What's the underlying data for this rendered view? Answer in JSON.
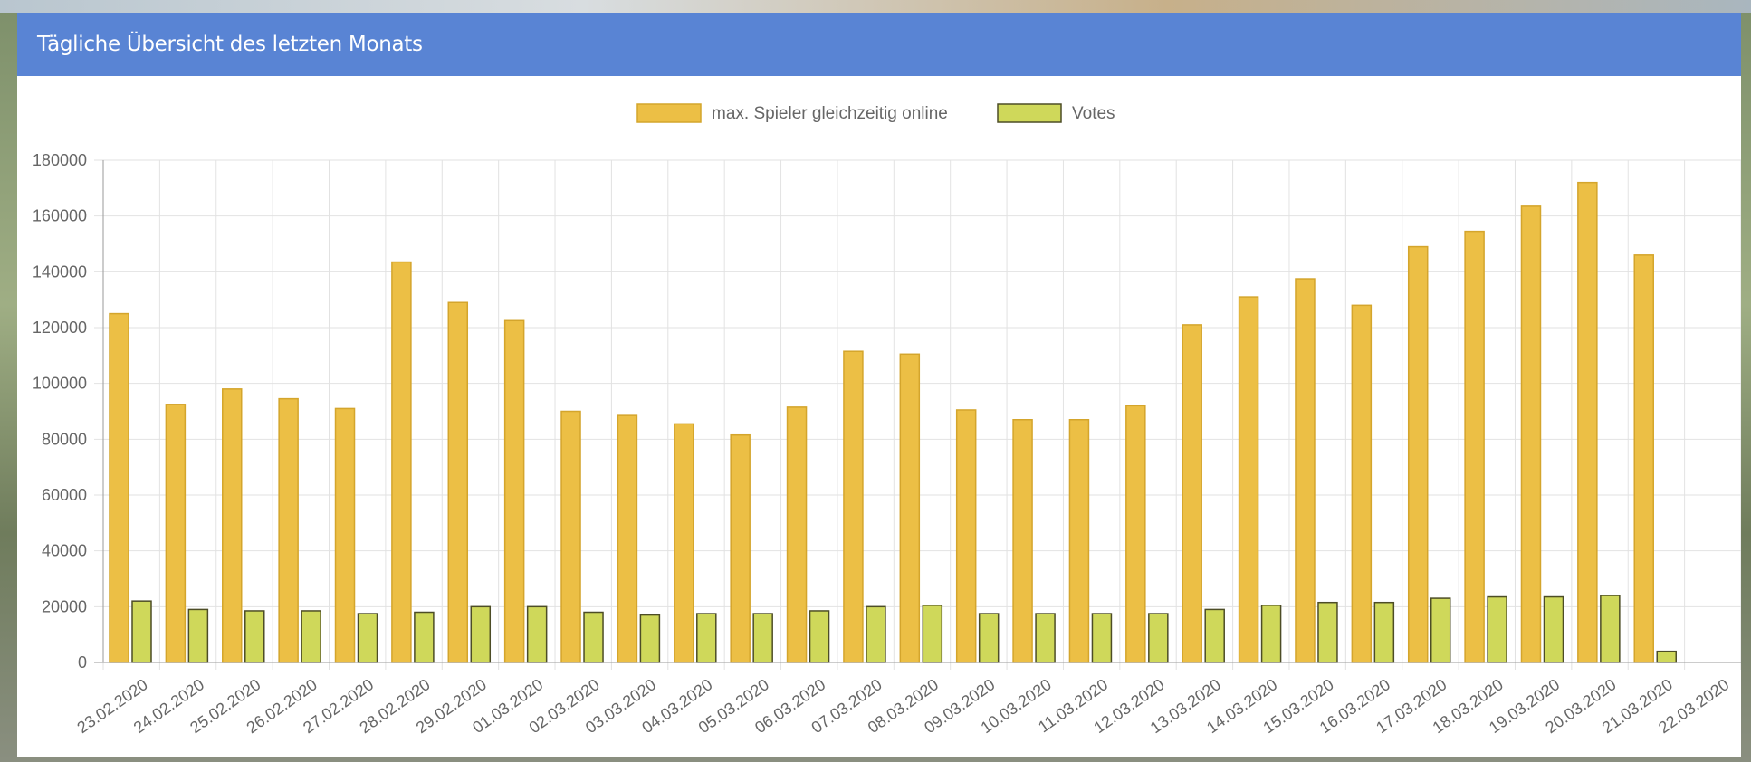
{
  "panel": {
    "title": "Tägliche Übersicht des letzten Monats"
  },
  "colors": {
    "header_bg": "#5984d4",
    "players_fill": "#ecbf45",
    "players_stroke": "#d4a52c",
    "votes_fill": "#cfd85a",
    "votes_stroke": "#4d4d26",
    "grid": "#e2e2e2",
    "axis_text": "#666666"
  },
  "chart_data": {
    "type": "bar",
    "categories": [
      "23.02.2020",
      "24.02.2020",
      "25.02.2020",
      "26.02.2020",
      "27.02.2020",
      "28.02.2020",
      "29.02.2020",
      "01.03.2020",
      "02.03.2020",
      "03.03.2020",
      "04.03.2020",
      "05.03.2020",
      "06.03.2020",
      "07.03.2020",
      "08.03.2020",
      "09.03.2020",
      "10.03.2020",
      "11.03.2020",
      "12.03.2020",
      "13.03.2020",
      "14.03.2020",
      "15.03.2020",
      "16.03.2020",
      "17.03.2020",
      "18.03.2020",
      "19.03.2020",
      "20.03.2020",
      "21.03.2020",
      "22.03.2020"
    ],
    "series": [
      {
        "name": "max. Spieler gleichzeitig online",
        "color": "#ecbf45",
        "values": [
          125000,
          92500,
          98000,
          94500,
          91000,
          143500,
          129000,
          122500,
          90000,
          88500,
          85500,
          81500,
          91500,
          111500,
          110500,
          90500,
          87000,
          87000,
          92000,
          121000,
          131000,
          137500,
          128000,
          149000,
          154500,
          163500,
          172000,
          146000,
          null
        ]
      },
      {
        "name": "Votes",
        "color": "#cfd85a",
        "values": [
          22000,
          19000,
          18500,
          18500,
          17500,
          18000,
          20000,
          20000,
          18000,
          17000,
          17500,
          17500,
          18500,
          20000,
          20500,
          17500,
          17500,
          17500,
          17500,
          19000,
          20500,
          21500,
          21500,
          23000,
          23500,
          23500,
          24000,
          4000,
          null
        ]
      }
    ],
    "ylim": [
      0,
      180000
    ],
    "yticks": [
      "0",
      "20000",
      "40000",
      "60000",
      "80000",
      "100000",
      "120000",
      "140000",
      "160000",
      "180000"
    ],
    "grid": true,
    "legend_position": "top-center"
  }
}
